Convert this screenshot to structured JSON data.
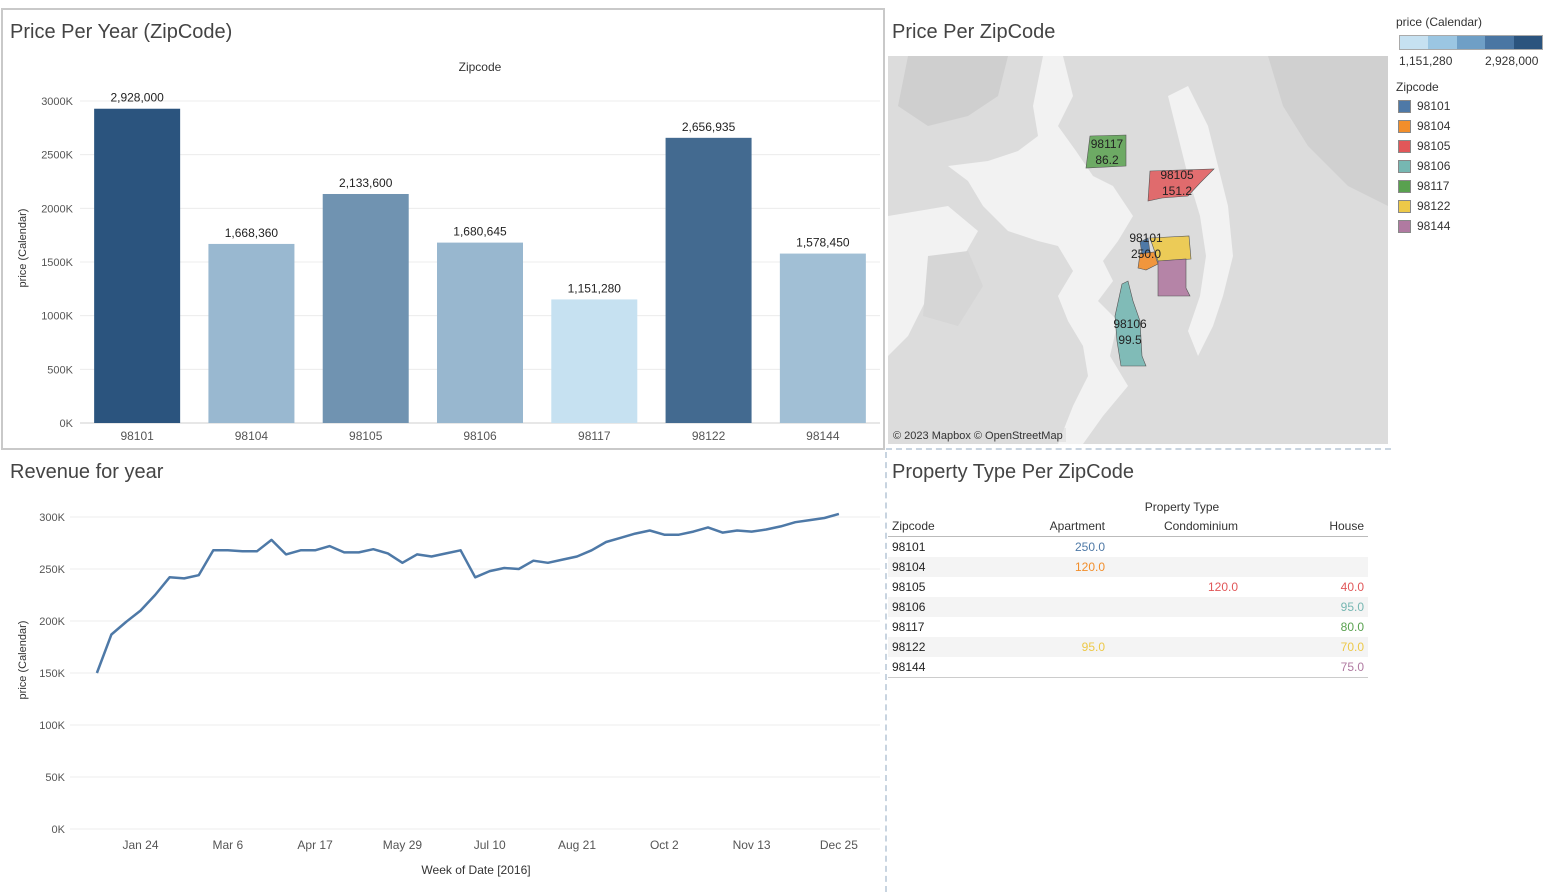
{
  "bar_panel": {
    "title": "Price Per Year (ZipCode)",
    "top_label": "Zipcode",
    "ylabel": "price (Calendar)"
  },
  "map_panel": {
    "title": "Price Per ZipCode",
    "attribution": "© 2023 Mapbox © OpenStreetMap",
    "labels": [
      {
        "zip": "98117",
        "value": "86.2"
      },
      {
        "zip": "98105",
        "value": "151.2"
      },
      {
        "zip": "98101",
        "value": "250.0"
      },
      {
        "zip": "98106",
        "value": "99.5"
      }
    ]
  },
  "legend": {
    "price_title": "price (Calendar)",
    "price_min": "1,151,280",
    "price_max": "2,928,000",
    "price_ramp": [
      "#c6e1f1",
      "#9bc6e2",
      "#6f9fc6",
      "#4a76a3",
      "#2b547e"
    ],
    "zip_title": "Zipcode",
    "zips": [
      {
        "label": "98101",
        "color": "#4e79a7"
      },
      {
        "label": "98104",
        "color": "#f28e2b"
      },
      {
        "label": "98105",
        "color": "#e15759"
      },
      {
        "label": "98106",
        "color": "#76b7b2"
      },
      {
        "label": "98117",
        "color": "#59a14f"
      },
      {
        "label": "98122",
        "color": "#edc948"
      },
      {
        "label": "98144",
        "color": "#b07aa1"
      }
    ]
  },
  "line_panel": {
    "title": "Revenue for year",
    "xlabel": "Week of Date [2016]",
    "ylabel": "price (Calendar)"
  },
  "table_panel": {
    "title": "Property Type Per ZipCode",
    "super_header": "Property Type",
    "headers": [
      "Zipcode",
      "Apartment",
      "Condominium",
      "House"
    ],
    "rows": [
      {
        "zip": "98101",
        "apartment": "250.0",
        "condominium": "",
        "house": "",
        "color": "#4e79a7"
      },
      {
        "zip": "98104",
        "apartment": "120.0",
        "condominium": "",
        "house": "",
        "color": "#f28e2b"
      },
      {
        "zip": "98105",
        "apartment": "",
        "condominium": "120.0",
        "house": "40.0",
        "color": "#e15759"
      },
      {
        "zip": "98106",
        "apartment": "",
        "condominium": "",
        "house": "95.0",
        "color": "#76b7b2"
      },
      {
        "zip": "98117",
        "apartment": "",
        "condominium": "",
        "house": "80.0",
        "color": "#59a14f"
      },
      {
        "zip": "98122",
        "apartment": "95.0",
        "condominium": "",
        "house": "70.0",
        "color": "#edc948"
      },
      {
        "zip": "98144",
        "apartment": "",
        "condominium": "",
        "house": "75.0",
        "color": "#b07aa1"
      }
    ]
  },
  "chart_data": [
    {
      "type": "bar",
      "title": "Price Per Year (ZipCode)",
      "xlabel": "Zipcode",
      "ylabel": "price (Calendar)",
      "categories": [
        "98101",
        "98104",
        "98105",
        "98106",
        "98117",
        "98122",
        "98144"
      ],
      "values": [
        2928000,
        1668360,
        2133600,
        1680645,
        1151280,
        2656935,
        1578450
      ],
      "value_labels": [
        "2,928,000",
        "1,668,360",
        "2,133,600",
        "1,680,645",
        "1,151,280",
        "2,656,935",
        "1,578,450"
      ],
      "ylim": [
        0,
        3000000
      ],
      "yticks": [
        0,
        500000,
        1000000,
        1500000,
        2000000,
        2500000,
        3000000
      ],
      "ytick_labels": [
        "0K",
        "500K",
        "1000K",
        "1500K",
        "2000K",
        "2500K",
        "3000K"
      ],
      "color_min": "#c6e1f1",
      "color_max": "#2b547e"
    },
    {
      "type": "line",
      "title": "Revenue for year",
      "xlabel": "Week of Date [2016]",
      "ylabel": "price (Calendar)",
      "x_start_day": 3,
      "x_step_days": 7,
      "values": [
        150000,
        187000,
        199000,
        210000,
        225000,
        242000,
        241000,
        244000,
        268000,
        268000,
        267000,
        267000,
        278000,
        264000,
        268000,
        268000,
        272000,
        266000,
        266000,
        269000,
        265000,
        256000,
        264000,
        262000,
        265000,
        268000,
        242000,
        248000,
        251000,
        250000,
        258000,
        256000,
        259000,
        262000,
        268000,
        276000,
        280000,
        284000,
        287000,
        283000,
        283000,
        286000,
        290000,
        285000,
        287000,
        286000,
        288000,
        291000,
        295000,
        297000,
        299000,
        303000
      ],
      "ylim": [
        0,
        300000
      ],
      "yticks": [
        0,
        50000,
        100000,
        150000,
        200000,
        250000,
        300000
      ],
      "ytick_labels": [
        "0K",
        "50K",
        "100K",
        "150K",
        "200K",
        "250K",
        "300K"
      ],
      "xticks_day": [
        24,
        66,
        108,
        150,
        192,
        234,
        276,
        318,
        360
      ],
      "xtick_labels": [
        "Jan 24",
        "Mar 6",
        "Apr 17",
        "May 29",
        "Jul 10",
        "Aug 21",
        "Oct 2",
        "Nov 13",
        "Dec 25"
      ],
      "color": "#4e79a7"
    }
  ]
}
